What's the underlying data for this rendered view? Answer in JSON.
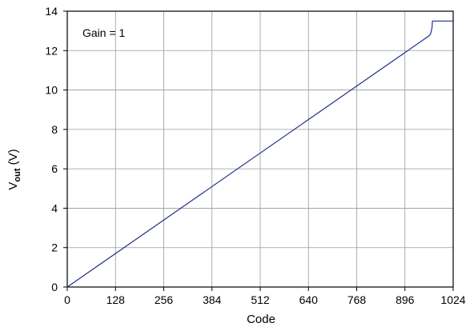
{
  "chart_data": {
    "type": "line",
    "title": "",
    "xlabel": "Code",
    "ylabel_main": "V",
    "ylabel_sub": "out",
    "ylabel_unit": " (V)",
    "annotation": "Gain = 1",
    "xlim": [
      0,
      1024
    ],
    "ylim": [
      0,
      14
    ],
    "x_ticks": [
      0,
      128,
      256,
      384,
      512,
      640,
      768,
      896,
      1024
    ],
    "y_ticks": [
      0,
      2,
      4,
      6,
      8,
      10,
      12,
      14
    ],
    "grid": true,
    "legend": "none",
    "line_color": "#1f2f8c",
    "series": [
      {
        "x": [
          0,
          960,
          964,
          966,
          968,
          969,
          971,
          1024
        ],
        "y": [
          0,
          12.75,
          12.85,
          13.0,
          13.2,
          13.5,
          13.5,
          13.5
        ]
      }
    ]
  }
}
